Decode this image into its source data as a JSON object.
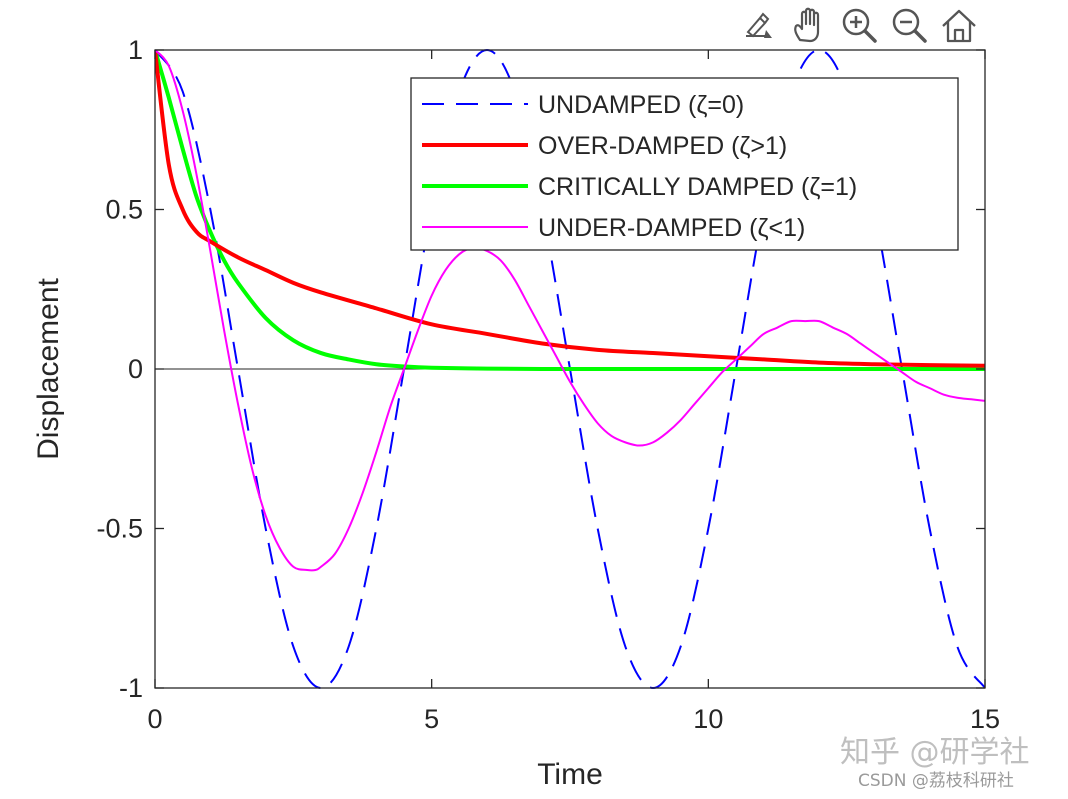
{
  "chart_data": {
    "type": "line",
    "title": "",
    "xlabel": "Time",
    "ylabel": "Displacement",
    "xlim": [
      0,
      15
    ],
    "ylim": [
      -1,
      1
    ],
    "xticks": [
      0,
      5,
      10,
      15
    ],
    "xtick_labels": [
      "0",
      "5",
      "10",
      "15"
    ],
    "yticks": [
      -1,
      -0.5,
      0,
      0.5,
      1
    ],
    "ytick_labels": [
      "-1",
      "-0.5",
      "0",
      "0.5",
      "1"
    ],
    "grid": false,
    "zero_line": true,
    "legend_position": "top-right",
    "series": [
      {
        "name": "UNDAMPED (ζ=0)",
        "color": "#0000ff",
        "style": "dashed",
        "x": [
          0,
          0.5,
          1,
          1.5,
          2,
          2.5,
          3,
          3.5,
          4,
          4.5,
          5,
          5.5,
          6,
          6.5,
          7,
          7.5,
          8,
          8.5,
          9,
          9.5,
          10,
          10.5,
          11,
          11.5,
          12,
          12.5,
          13,
          13.5,
          14,
          14.5,
          15
        ],
        "values": [
          1,
          0.87,
          0.5,
          0,
          -0.5,
          -0.87,
          -1,
          -0.87,
          -0.5,
          0,
          0.5,
          0.87,
          1,
          0.87,
          0.5,
          0,
          -0.5,
          -0.87,
          -1,
          -0.87,
          -0.5,
          0,
          0.5,
          0.87,
          1,
          0.87,
          0.5,
          0,
          -0.5,
          -0.87,
          -1
        ]
      },
      {
        "name": "OVER-DAMPED (ζ>1)",
        "color": "#ff0000",
        "style": "solid-thick",
        "x": [
          0,
          0.25,
          0.5,
          0.75,
          1,
          1.5,
          2,
          2.5,
          3,
          4,
          5,
          6,
          7,
          8,
          9,
          10,
          11,
          12,
          13,
          14,
          15
        ],
        "values": [
          1,
          0.64,
          0.5,
          0.43,
          0.4,
          0.35,
          0.31,
          0.27,
          0.24,
          0.19,
          0.14,
          0.11,
          0.08,
          0.06,
          0.05,
          0.04,
          0.03,
          0.02,
          0.015,
          0.012,
          0.01
        ]
      },
      {
        "name": "CRITICALLY DAMPED (ζ=1)",
        "color": "#00ff00",
        "style": "solid-thick",
        "x": [
          0,
          0.25,
          0.5,
          0.75,
          1,
          1.25,
          1.5,
          2,
          2.5,
          3,
          3.5,
          4,
          4.5,
          5,
          6,
          7,
          8,
          10,
          12,
          15
        ],
        "values": [
          1,
          0.85,
          0.69,
          0.54,
          0.43,
          0.34,
          0.27,
          0.16,
          0.09,
          0.05,
          0.03,
          0.015,
          0.008,
          0.004,
          0.001,
          0,
          0,
          0,
          0,
          0
        ]
      },
      {
        "name": "UNDER-DAMPED (ζ<1)",
        "color": "#ff00ff",
        "style": "solid",
        "x": [
          0,
          0.25,
          0.5,
          0.75,
          1,
          1.25,
          1.5,
          1.75,
          2,
          2.25,
          2.5,
          2.75,
          2.9,
          3,
          3.25,
          3.5,
          3.75,
          4,
          4.25,
          4.5,
          4.75,
          5,
          5.25,
          5.5,
          5.75,
          6,
          6.25,
          6.5,
          6.75,
          7,
          7.25,
          7.5,
          7.75,
          8,
          8.25,
          8.5,
          8.75,
          9,
          9.25,
          9.5,
          9.75,
          10,
          10.25,
          10.5,
          10.75,
          11,
          11.25,
          11.5,
          11.75,
          12,
          12.25,
          12.5,
          12.75,
          13,
          13.25,
          13.5,
          13.75,
          14,
          14.25,
          14.5,
          14.75,
          15
        ],
        "values": [
          1,
          0.95,
          0.81,
          0.61,
          0.37,
          0.12,
          -0.11,
          -0.31,
          -0.46,
          -0.56,
          -0.62,
          -0.63,
          -0.63,
          -0.62,
          -0.58,
          -0.5,
          -0.39,
          -0.26,
          -0.12,
          0,
          0.12,
          0.23,
          0.31,
          0.36,
          0.38,
          0.37,
          0.34,
          0.28,
          0.2,
          0.12,
          0.04,
          -0.04,
          -0.11,
          -0.17,
          -0.21,
          -0.23,
          -0.24,
          -0.23,
          -0.2,
          -0.16,
          -0.11,
          -0.06,
          -0.01,
          0.03,
          0.07,
          0.11,
          0.13,
          0.15,
          0.15,
          0.15,
          0.13,
          0.11,
          0.08,
          0.05,
          0.02,
          -0.01,
          -0.04,
          -0.06,
          -0.08,
          -0.09,
          -0.095,
          -0.1
        ]
      }
    ]
  },
  "toolbar": {
    "icons": [
      "brush-icon",
      "pan-hand-icon",
      "zoom-in-icon",
      "zoom-out-icon",
      "home-icon"
    ]
  },
  "watermark": {
    "main": "知乎 @研学社",
    "sub": "CSDN @荔枝科研社"
  }
}
